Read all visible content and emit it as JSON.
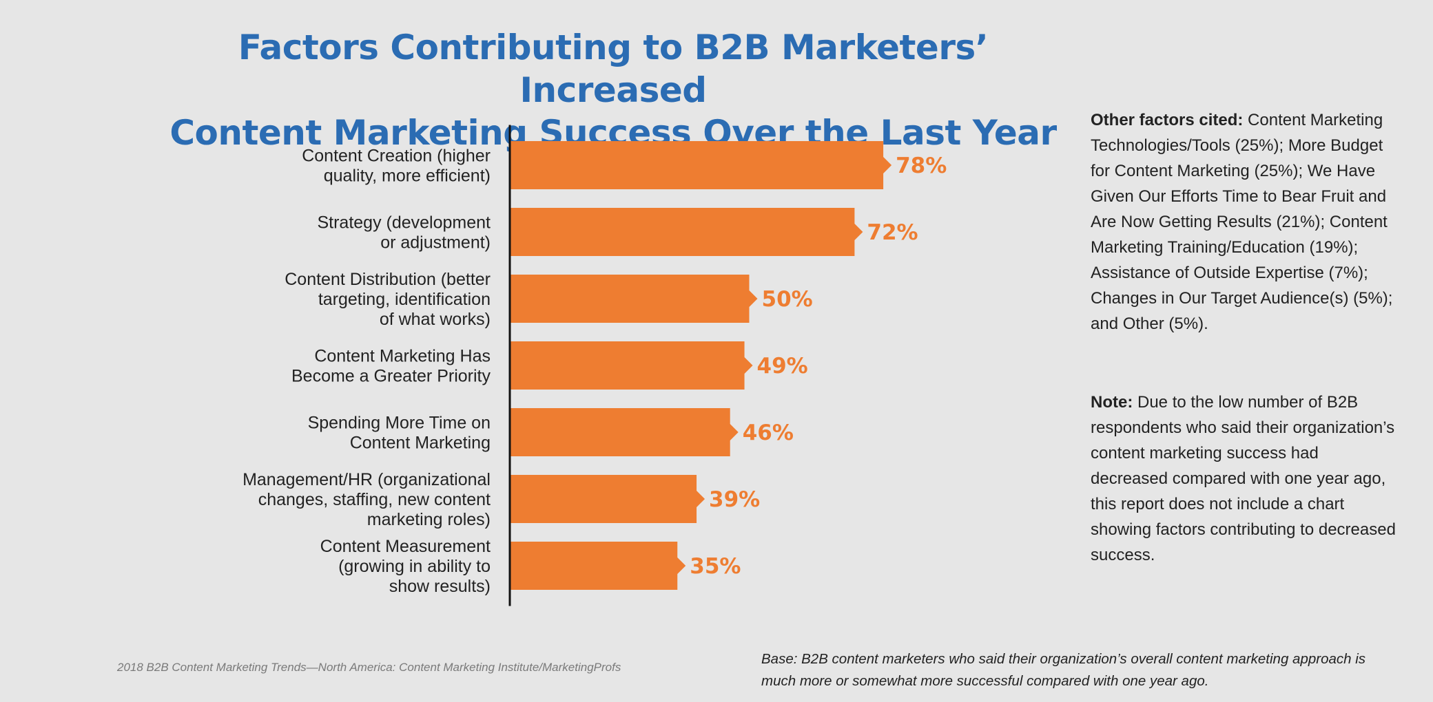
{
  "title_lines": [
    "Factors Contributing to B2B Marketers’ Increased",
    "Content Marketing Success Over the Last Year"
  ],
  "chart_data": {
    "type": "bar",
    "orientation": "horizontal",
    "categories": [
      [
        "Content Creation (higher",
        "quality, more efficient)"
      ],
      [
        "Strategy (development",
        "or adjustment)"
      ],
      [
        "Content Distribution (better",
        "targeting, identification",
        "of what works)"
      ],
      [
        "Content Marketing Has",
        "Become a Greater Priority"
      ],
      [
        "Spending More Time on",
        "Content Marketing"
      ],
      [
        "Management/HR (organizational",
        "changes, staffing, new content",
        "marketing roles)"
      ],
      [
        "Content Measurement",
        "(growing in ability to",
        "show results)"
      ]
    ],
    "values": [
      78,
      72,
      50,
      49,
      46,
      39,
      35
    ],
    "value_labels": [
      "78%",
      "72%",
      "50%",
      "49%",
      "46%",
      "39%",
      "35%"
    ],
    "unit": "%",
    "xlim": [
      0,
      100
    ],
    "bar_color": "#ee7d31",
    "label_color": "#ee7d31",
    "grid": false,
    "legend": "none"
  },
  "sidebar": {
    "other_heading": "Other factors cited:",
    "other_text": " Content Marketing Technologies/Tools (25%); More Budget for Content Marketing (25%); We Have Given Our Efforts Time to Bear Fruit and Are Now Getting Results (21%); Content Marketing Training/Education (19%); Assistance of Outside Expertise (7%); Changes in Our Target Audience(s) (5%); and Other (5%).",
    "note_heading": "Note:",
    "note_text": " Due to the low number of B2B respondents who said their organization’s content marketing success had decreased compared with one year ago, this report does not include a chart showing factors contributing to decreased success."
  },
  "footer": {
    "source": "2018 B2B Content Marketing Trends—North America: Content Marketing Institute/MarketingProfs",
    "base": "Base: B2B content marketers who said their organization’s overall content marketing approach is much more or somewhat more successful compared with one year ago."
  },
  "colors": {
    "title": "#2b6cb3",
    "bar": "#ee7d31",
    "background": "#e6e6e6"
  }
}
